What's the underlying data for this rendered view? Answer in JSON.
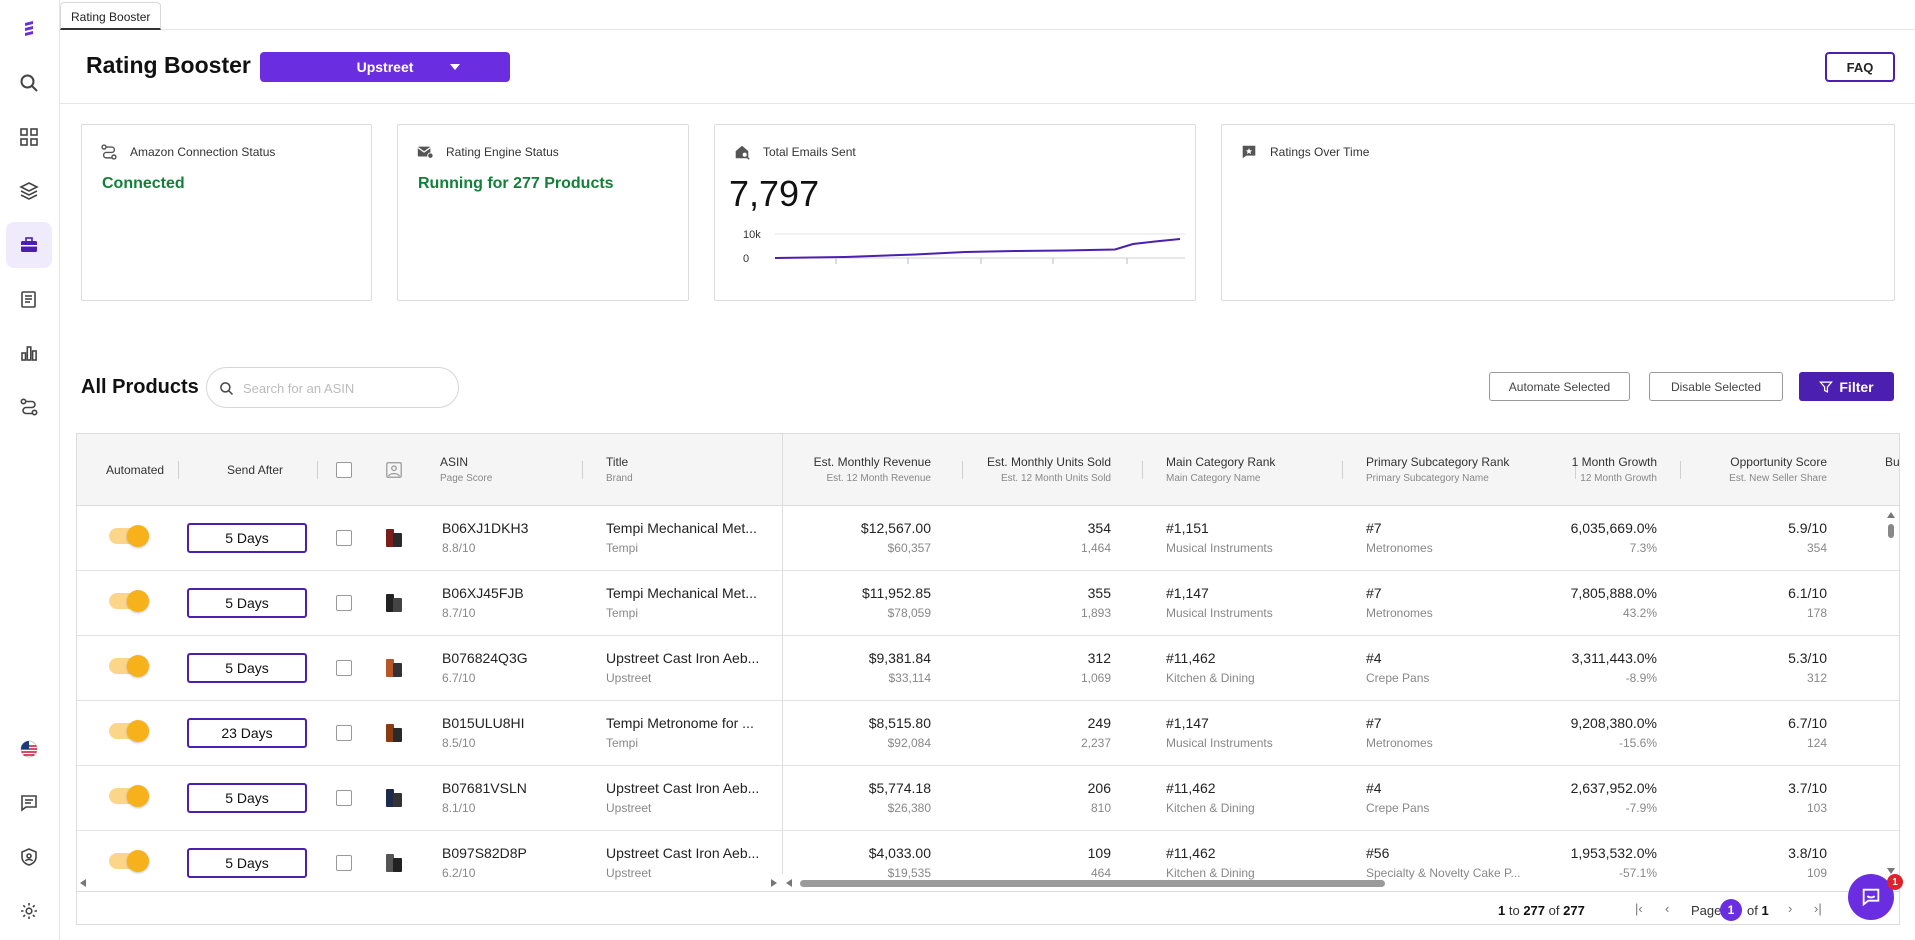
{
  "tab": {
    "label": "Rating Booster"
  },
  "header": {
    "title": "Rating Booster",
    "store": "Upstreet",
    "faq": "FAQ"
  },
  "cards": {
    "amazon": {
      "label": "Amazon Connection Status",
      "value": "Connected"
    },
    "engine": {
      "label": "Rating Engine Status",
      "value": "Running for 277 Products"
    },
    "emails": {
      "label": "Total Emails Sent",
      "value": "7,797",
      "axis_top": "10k",
      "axis_zero": "0"
    },
    "ratings": {
      "label": "Ratings Over Time"
    }
  },
  "products": {
    "title": "All Products",
    "search_placeholder": "Search for an ASIN",
    "automate_label": "Automate Selected",
    "disable_label": "Disable Selected",
    "filter_label": "Filter"
  },
  "columns": {
    "automated": "Automated",
    "send_after": "Send After",
    "asin": "ASIN",
    "asin_sub": "Page Score",
    "title": "Title",
    "title_sub": "Brand",
    "revenue": "Est. Monthly Revenue",
    "revenue_sub": "Est. 12 Month Revenue",
    "units": "Est. Monthly Units Sold",
    "units_sub": "Est. 12 Month Units Sold",
    "rank": "Main Category Rank",
    "rank_sub": "Main Category Name",
    "subrank": "Primary Subcategory Rank",
    "subrank_sub": "Primary Subcategory Name",
    "growth": "1 Month Growth",
    "growth_sub": "12 Month Growth",
    "opp": "Opportunity Score",
    "opp_sub": "Est. New Seller Share",
    "cut": "Bu"
  },
  "rows": [
    {
      "days": "5 Days",
      "asin": "B06XJ1DKH3",
      "score": "8.8/10",
      "title": "Tempi Mechanical Met...",
      "brand": "Tempi",
      "rev": "$12,567.00",
      "rev12": "$60,357",
      "units": "354",
      "units12": "1,464",
      "rank": "#1,151",
      "cat": "Musical Instruments",
      "subrank": "#7",
      "subcat": "Metronomes",
      "growth": "6,035,669.0%",
      "growth12": "7.3%",
      "opp": "5.9/10",
      "share": "354"
    },
    {
      "days": "5 Days",
      "asin": "B06XJ45FJB",
      "score": "8.7/10",
      "title": "Tempi Mechanical Met...",
      "brand": "Tempi",
      "rev": "$11,952.85",
      "rev12": "$78,059",
      "units": "355",
      "units12": "1,893",
      "rank": "#1,147",
      "cat": "Musical Instruments",
      "subrank": "#7",
      "subcat": "Metronomes",
      "growth": "7,805,888.0%",
      "growth12": "43.2%",
      "opp": "6.1/10",
      "share": "178"
    },
    {
      "days": "5 Days",
      "asin": "B076824Q3G",
      "score": "6.7/10",
      "title": "Upstreet Cast Iron Aeb...",
      "brand": "Upstreet",
      "rev": "$9,381.84",
      "rev12": "$33,114",
      "units": "312",
      "units12": "1,069",
      "rank": "#11,462",
      "cat": "Kitchen & Dining",
      "subrank": "#4",
      "subcat": "Crepe Pans",
      "growth": "3,311,443.0%",
      "growth12": "-8.9%",
      "opp": "5.3/10",
      "share": "312"
    },
    {
      "days": "23 Days",
      "asin": "B015ULU8HI",
      "score": "8.5/10",
      "title": "Tempi Metronome for ...",
      "brand": "Tempi",
      "rev": "$8,515.80",
      "rev12": "$92,084",
      "units": "249",
      "units12": "2,237",
      "rank": "#1,147",
      "cat": "Musical Instruments",
      "subrank": "#7",
      "subcat": "Metronomes",
      "growth": "9,208,380.0%",
      "growth12": "-15.6%",
      "opp": "6.7/10",
      "share": "124"
    },
    {
      "days": "5 Days",
      "asin": "B07681VSLN",
      "score": "8.1/10",
      "title": "Upstreet Cast Iron Aeb...",
      "brand": "Upstreet",
      "rev": "$5,774.18",
      "rev12": "$26,380",
      "units": "206",
      "units12": "810",
      "rank": "#11,462",
      "cat": "Kitchen & Dining",
      "subrank": "#4",
      "subcat": "Crepe Pans",
      "growth": "2,637,952.0%",
      "growth12": "-7.9%",
      "opp": "3.7/10",
      "share": "103"
    },
    {
      "days": "5 Days",
      "asin": "B097S82D8P",
      "score": "6.2/10",
      "title": "Upstreet Cast Iron Aeb...",
      "brand": "Upstreet",
      "rev": "$4,033.00",
      "rev12": "$19,535",
      "units": "109",
      "units12": "464",
      "rank": "#11,462",
      "cat": "Kitchen & Dining",
      "subrank": "#56",
      "subcat": "Specialty & Novelty Cake P...",
      "growth": "1,953,532.0%",
      "growth12": "-57.1%",
      "opp": "3.8/10",
      "share": "109"
    }
  ],
  "pager": {
    "from": "1",
    "to_word": "to",
    "to": "277",
    "of_word": "of",
    "total": "277",
    "page_word": "Page",
    "page": "1",
    "of_pages_word": "of",
    "pages": "1"
  },
  "chat": {
    "badge": "1"
  },
  "colors": {
    "accent": "#6a2ee0",
    "accent_dark": "#4b1fb0",
    "success": "#13803a",
    "toggle": "#f7b21b"
  }
}
